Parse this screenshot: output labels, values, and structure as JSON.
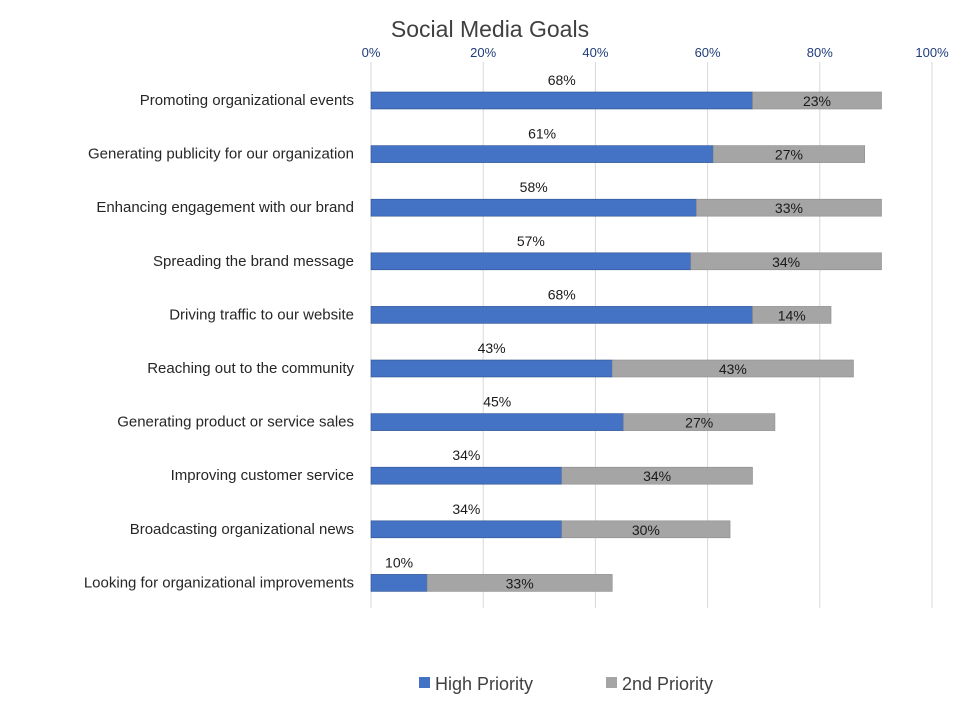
{
  "chart_data": {
    "type": "bar",
    "orientation": "horizontal",
    "stacked": true,
    "title": "Social Media Goals",
    "categories": [
      "Promoting organizational events",
      "Generating publicity for our organization",
      "Enhancing engagement with our brand",
      "Spreading the brand message",
      "Driving traffic to our website",
      "Reaching out to the community",
      "Generating product or service sales",
      "Improving customer service",
      "Broadcasting organizational news",
      "Looking for organizational improvements"
    ],
    "series": [
      {
        "name": "High Priority",
        "values": [
          68,
          61,
          58,
          57,
          68,
          43,
          45,
          34,
          34,
          10
        ],
        "color": "#4472c4"
      },
      {
        "name": "2nd Priority",
        "values": [
          23,
          27,
          33,
          34,
          14,
          43,
          27,
          34,
          30,
          33
        ],
        "color": "#a5a5a5"
      }
    ],
    "xlim": [
      0,
      100
    ],
    "ticks": [
      "0%",
      "20%",
      "40%",
      "60%",
      "80%",
      "100%"
    ],
    "tick_values": [
      0,
      20,
      40,
      60,
      80,
      100
    ],
    "value_suffix": "%",
    "axis_position": "top",
    "grid": true,
    "legend_position": "bottom"
  }
}
